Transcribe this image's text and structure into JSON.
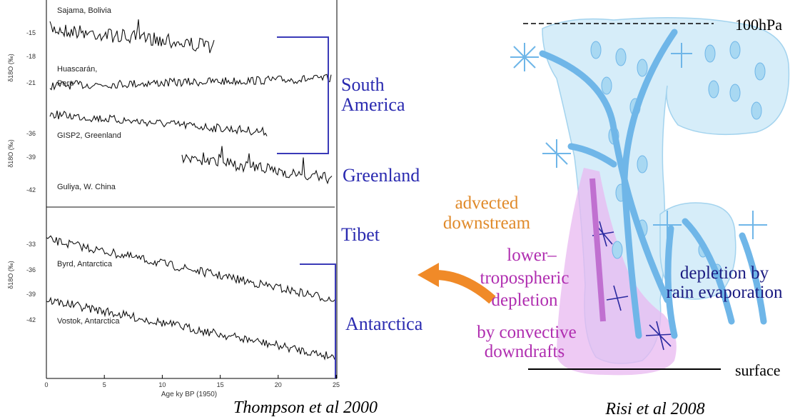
{
  "left_panel": {
    "records": [
      [
        "Sajama, Bolivia"
      ],
      [
        "Huascarán,",
        "Peru"
      ],
      [
        "GISP2, Greenland"
      ],
      [
        "Guliya, W. China"
      ],
      [
        "Byrd, Antarctica"
      ],
      [
        "Vostok, Antarctica"
      ]
    ],
    "y_tick_groups": [
      [
        "-15",
        "-18",
        "-21"
      ],
      [
        "-36",
        "-39",
        "-42"
      ],
      [
        "-33",
        "-36",
        "-39",
        "-42"
      ]
    ],
    "y_axis_label": "δ18O (‰)",
    "x_ticks": [
      "0",
      "5",
      "10",
      "15",
      "20",
      "25"
    ],
    "x_axis_label": "Age ky BP (1950)",
    "regions": [
      [
        "South",
        "America"
      ],
      [
        "Greenland"
      ],
      [
        "Tibet"
      ],
      [
        "Antarctica"
      ]
    ],
    "caption": "Thompson et al 2000"
  },
  "right_panel": {
    "top_level": "100hPa",
    "bottom_level": "surface",
    "advected": [
      "advected",
      "downstream"
    ],
    "lower_depletion": [
      "lower–",
      "tropospheric",
      "depletion",
      "by convective",
      "downdrafts"
    ],
    "rain_depletion": [
      "depletion by",
      "rain evaporation"
    ],
    "caption": "Risi et al 2008"
  }
}
